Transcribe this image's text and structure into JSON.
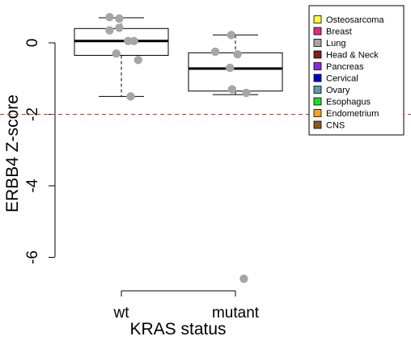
{
  "chart_data": {
    "type": "boxplot",
    "categories": [
      "wt",
      "mutant"
    ],
    "xlabel": "KRAS status",
    "ylabel": "ERBB4 Z-score",
    "ylim": [
      -6.5,
      1.1
    ],
    "yticks": [
      0,
      -2,
      -4,
      -6
    ],
    "ytick_labels": [
      "0",
      "-2",
      "-4",
      "-6"
    ],
    "reference_line": {
      "y": -2,
      "color": "#c0392b",
      "style": "dashed"
    },
    "boxes": [
      {
        "category": "wt",
        "whisker_low": -1.5,
        "q1": -0.35,
        "median": 0.05,
        "q3": 0.4,
        "whisker_high": 0.7
      },
      {
        "category": "mutant",
        "whisker_low": -1.45,
        "q1": -1.35,
        "median": -0.72,
        "q3": -0.28,
        "whisker_high": 0.22
      }
    ],
    "points": [
      {
        "category": "wt",
        "jitter": -0.28,
        "y": 0.72
      },
      {
        "category": "wt",
        "jitter": -0.05,
        "y": 0.68
      },
      {
        "category": "wt",
        "jitter": -0.28,
        "y": 0.35
      },
      {
        "category": "wt",
        "jitter": -0.05,
        "y": 0.42
      },
      {
        "category": "wt",
        "jitter": 0.16,
        "y": 0.05
      },
      {
        "category": "wt",
        "jitter": 0.3,
        "y": 0.05
      },
      {
        "category": "wt",
        "jitter": -0.12,
        "y": -0.3
      },
      {
        "category": "wt",
        "jitter": 0.4,
        "y": -0.48
      },
      {
        "category": "wt",
        "jitter": 0.22,
        "y": -1.5
      },
      {
        "category": "mutant",
        "jitter": -0.1,
        "y": 0.22
      },
      {
        "category": "mutant",
        "jitter": -0.48,
        "y": -0.25
      },
      {
        "category": "mutant",
        "jitter": 0.05,
        "y": -0.32
      },
      {
        "category": "mutant",
        "jitter": -0.13,
        "y": -0.7
      },
      {
        "category": "mutant",
        "jitter": -0.08,
        "y": -1.3
      },
      {
        "category": "mutant",
        "jitter": 0.26,
        "y": -1.4
      },
      {
        "category": "mutant",
        "jitter": 0.2,
        "y": -6.6
      }
    ],
    "point_color": "#a6a6a6",
    "grid": false,
    "legend": {
      "placement": "top-right",
      "entries": [
        {
          "label": "Osteosarcoma",
          "color": "#ffff33"
        },
        {
          "label": "Breast",
          "color": "#e7298a"
        },
        {
          "label": "Lung",
          "color": "#a6a6a6"
        },
        {
          "label": "Head & Neck",
          "color": "#7f1f1f"
        },
        {
          "label": "Pancreas",
          "color": "#8a2be2"
        },
        {
          "label": "Cervical",
          "color": "#0000cd"
        },
        {
          "label": "Ovary",
          "color": "#5f9ea0"
        },
        {
          "label": "Esophagus",
          "color": "#22dd22"
        },
        {
          "label": "Endometrium",
          "color": "#ff9f2a"
        },
        {
          "label": "CNS",
          "color": "#8b5a1a"
        }
      ]
    }
  }
}
